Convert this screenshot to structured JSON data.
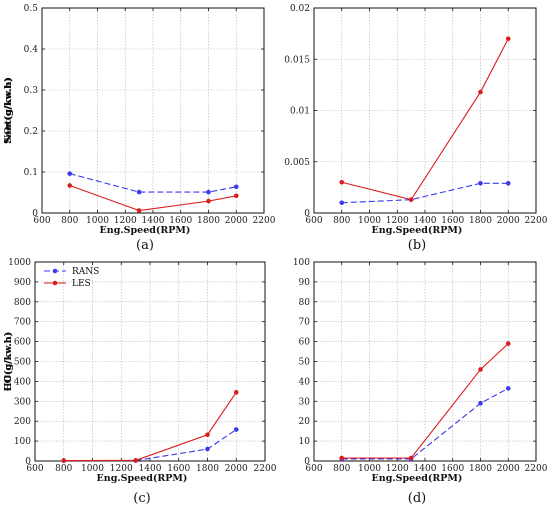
{
  "chart_data": [
    {
      "type": "line",
      "panel": "(a)",
      "xlabel": "Eng.Speed(RPM)",
      "ylabel": "NOx(g/kw.h)",
      "xlim": [
        600,
        2200
      ],
      "ylim": [
        0,
        0.5
      ],
      "xticks": [
        600,
        800,
        1000,
        1200,
        1400,
        1600,
        1800,
        2000,
        2200
      ],
      "xtick_labels": [
        "600",
        "800",
        "1000",
        "1200",
        "1400",
        "1600",
        "1800",
        "2000",
        "2200"
      ],
      "yticks": [
        0,
        0.1,
        0.2,
        0.3,
        0.4,
        0.5
      ],
      "ytick_labels": [
        "0",
        "0.1",
        "0.2",
        "0.3",
        "0.4",
        "0.5"
      ],
      "grid": true,
      "x": [
        800,
        1300,
        1800,
        2000
      ],
      "series": [
        {
          "name": "RANS",
          "color": "#3a3aee",
          "dash": true,
          "values": [
            0.096,
            0.051,
            0.051,
            0.064
          ]
        },
        {
          "name": "LES",
          "color": "#dd1c1c",
          "dash": false,
          "values": [
            0.067,
            0.006,
            0.029,
            0.042
          ]
        }
      ]
    },
    {
      "type": "line",
      "panel": "(b)",
      "xlabel": "Eng.Speed(RPM)",
      "ylabel": "Soot(g/kw.h)",
      "xlim": [
        600,
        2200
      ],
      "ylim": [
        0,
        0.02
      ],
      "xticks": [
        600,
        800,
        1000,
        1200,
        1400,
        1600,
        1800,
        2000,
        2200
      ],
      "xtick_labels": [
        "600",
        "800",
        "1000",
        "1200",
        "1400",
        "1600",
        "1800",
        "2000",
        "2200"
      ],
      "yticks": [
        0,
        0.005,
        0.01,
        0.015,
        0.02
      ],
      "ytick_labels": [
        "0",
        "0.005",
        "0.01",
        "0.015",
        "0.02"
      ],
      "grid": true,
      "x": [
        800,
        1300,
        1800,
        2000
      ],
      "series": [
        {
          "name": "RANS",
          "color": "#3a3aee",
          "dash": true,
          "values": [
            0.001,
            0.0013,
            0.0029,
            0.0029
          ]
        },
        {
          "name": "LES",
          "color": "#dd1c1c",
          "dash": false,
          "values": [
            0.003,
            0.0013,
            0.0118,
            0.017
          ]
        }
      ]
    },
    {
      "type": "line",
      "panel": "(c)",
      "xlabel": "Eng.Speed(RPM)",
      "ylabel": "HC(g/kw.h)",
      "xlim": [
        600,
        2200
      ],
      "ylim": [
        0,
        1000
      ],
      "xticks": [
        600,
        800,
        1000,
        1200,
        1400,
        1600,
        1800,
        2000,
        2200
      ],
      "xtick_labels": [
        "600",
        "800",
        "1000",
        "1200",
        "1400",
        "1600",
        "1800",
        "2000",
        "2200"
      ],
      "yticks": [
        0,
        100,
        200,
        300,
        400,
        500,
        600,
        700,
        800,
        900,
        1000
      ],
      "ytick_labels": [
        "0",
        "100",
        "200",
        "300",
        "400",
        "500",
        "600",
        "700",
        "800",
        "900",
        "1000"
      ],
      "grid": true,
      "legend": {
        "position": "top-left",
        "entries": [
          "RANS",
          "LES"
        ]
      },
      "x": [
        800,
        1300,
        1800,
        2000
      ],
      "series": [
        {
          "name": "RANS",
          "color": "#3a3aee",
          "dash": true,
          "values": [
            2,
            2,
            60,
            158
          ]
        },
        {
          "name": "LES",
          "color": "#dd1c1c",
          "dash": false,
          "values": [
            2,
            3,
            132,
            345
          ]
        }
      ]
    },
    {
      "type": "line",
      "panel": "(d)",
      "xlabel": "Eng.Speed(RPM)",
      "ylabel": "CO(g/kw.h)",
      "xlim": [
        600,
        2200
      ],
      "ylim": [
        0,
        100
      ],
      "xticks": [
        600,
        800,
        1000,
        1200,
        1400,
        1600,
        1800,
        2000,
        2200
      ],
      "xtick_labels": [
        "600",
        "800",
        "1000",
        "1200",
        "1400",
        "1600",
        "1800",
        "2000",
        "2200"
      ],
      "yticks": [
        0,
        10,
        20,
        30,
        40,
        50,
        60,
        70,
        80,
        90,
        100
      ],
      "ytick_labels": [
        "0",
        "10",
        "20",
        "30",
        "40",
        "50",
        "60",
        "70",
        "80",
        "90",
        "100"
      ],
      "grid": true,
      "x": [
        800,
        1300,
        1800,
        2000
      ],
      "series": [
        {
          "name": "RANS",
          "color": "#3a3aee",
          "dash": true,
          "values": [
            1,
            1,
            29,
            36.5
          ]
        },
        {
          "name": "LES",
          "color": "#dd1c1c",
          "dash": false,
          "values": [
            1.5,
            1.5,
            46,
            59
          ]
        }
      ]
    }
  ]
}
